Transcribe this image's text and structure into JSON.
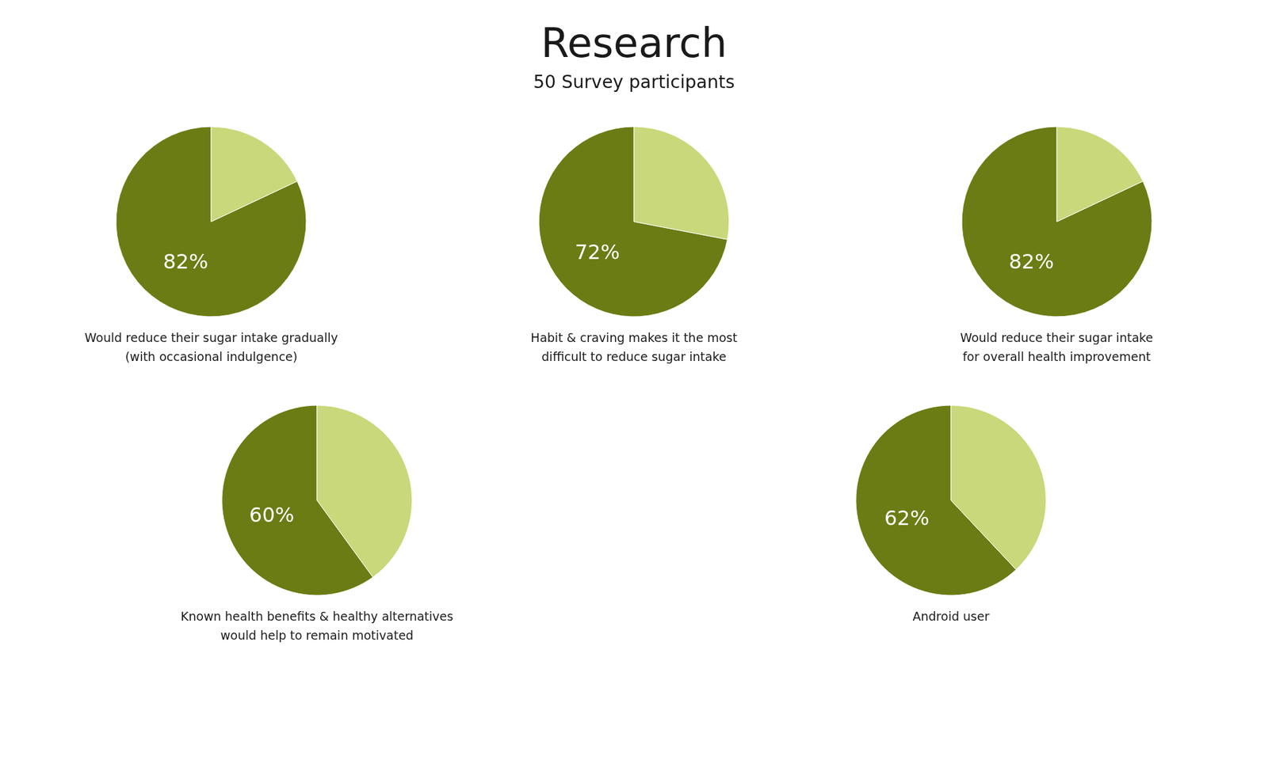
{
  "title": "Research",
  "subtitle": "50 Survey participants",
  "chart_data": [
    {
      "type": "pie",
      "title": "Would reduce their sugar intake gradually\n(with occasional indulgence)",
      "categories": [
        null,
        null
      ],
      "values": [
        82,
        18
      ],
      "value_labels": [
        "82%",
        null
      ],
      "data_labels": true,
      "colors": [
        "#6b7c14",
        "#c8d87a"
      ]
    },
    {
      "type": "pie",
      "title": "Habit & craving makes it the most\ndifficult to reduce sugar intake",
      "categories": [
        null,
        null
      ],
      "values": [
        72,
        28
      ],
      "value_labels": [
        "72%",
        null
      ],
      "data_labels": true,
      "colors": [
        "#6b7c14",
        "#c8d87a"
      ]
    },
    {
      "type": "pie",
      "title": "Would reduce their sugar intake\nfor overall health improvement",
      "categories": [
        null,
        null
      ],
      "values": [
        82,
        18
      ],
      "value_labels": [
        "82%",
        null
      ],
      "data_labels": true,
      "colors": [
        "#6b7c14",
        "#c8d87a"
      ]
    },
    {
      "type": "pie",
      "title": "Known health benefits & healthy alternatives\nwould help to remain motivated",
      "categories": [
        null,
        null
      ],
      "values": [
        60,
        40
      ],
      "value_labels": [
        "60%",
        null
      ],
      "data_labels": true,
      "colors": [
        "#6b7c14",
        "#c8d87a"
      ]
    },
    {
      "type": "pie",
      "title": "Android user",
      "categories": [
        null,
        null
      ],
      "values": [
        62,
        38
      ],
      "value_labels": [
        "62%",
        null
      ],
      "data_labels": true,
      "colors": [
        "#6b7c14",
        "#c8d87a"
      ]
    }
  ]
}
